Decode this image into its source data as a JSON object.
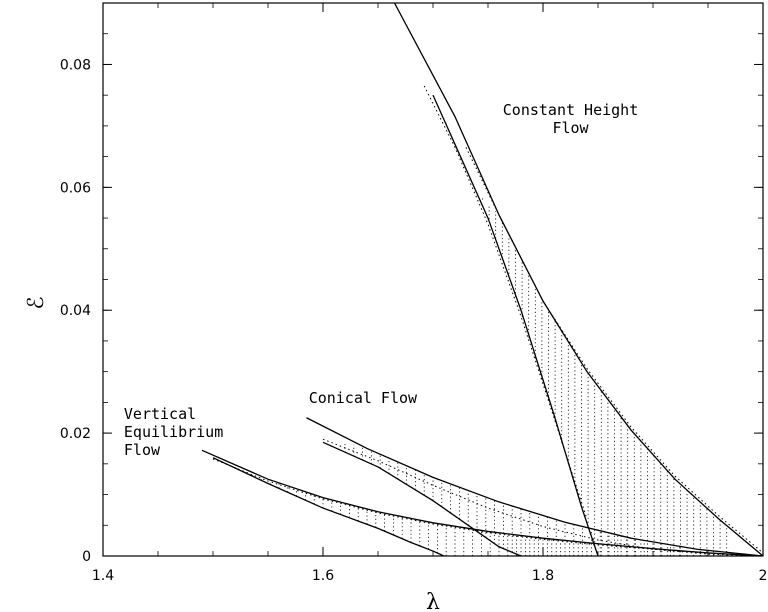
{
  "chart_data": {
    "type": "line",
    "title": "",
    "xlabel": "λ",
    "ylabel": "ℰ",
    "xlim": [
      1.4,
      2.0
    ],
    "ylim": [
      0,
      0.09
    ],
    "x_ticks": [
      {
        "value": 1.4,
        "label": "1.4"
      },
      {
        "value": 1.6,
        "label": "1.6"
      },
      {
        "value": 1.8,
        "label": "1.8"
      },
      {
        "value": 2.0,
        "label": "2"
      }
    ],
    "y_ticks": [
      {
        "value": 0,
        "label": "0"
      },
      {
        "value": 0.02,
        "label": "0.02"
      },
      {
        "value": 0.04,
        "label": "0.04"
      },
      {
        "value": 0.06,
        "label": "0.06"
      },
      {
        "value": 0.08,
        "label": "0.08"
      }
    ],
    "grid": false,
    "annotations": [
      {
        "lines": [
          "Constant Height",
          "Flow"
        ],
        "x": 1.825,
        "y": 0.0718,
        "align": "middle"
      },
      {
        "lines": [
          "Conical Flow"
        ],
        "x": 1.587,
        "y": 0.0249,
        "align": "start"
      },
      {
        "lines": [
          "Vertical",
          "Equilibrium",
          "Flow"
        ],
        "x": 1.419,
        "y": 0.0223,
        "align": "start"
      }
    ],
    "series": [
      {
        "style": "solid",
        "x": [
          1.665,
          1.72,
          1.76,
          1.8,
          1.84,
          1.88,
          1.92,
          1.96,
          2.0
        ],
        "y": [
          0.09,
          0.0715,
          0.0555,
          0.0415,
          0.03,
          0.0205,
          0.0125,
          0.006,
          0.0
        ]
      },
      {
        "style": "solid",
        "x": [
          1.7,
          1.72,
          1.75,
          1.78,
          1.81,
          1.835,
          1.85
        ],
        "y": [
          0.075,
          0.067,
          0.055,
          0.04,
          0.023,
          0.008,
          0.0
        ]
      },
      {
        "style": "dotted",
        "x": [
          1.692,
          1.72,
          1.75,
          1.78,
          1.81,
          1.84
        ],
        "y": [
          0.0765,
          0.0665,
          0.054,
          0.039,
          0.0225,
          0.006
        ]
      },
      {
        "style": "dotted",
        "x": [
          1.73,
          1.76,
          1.8,
          1.84,
          1.88,
          1.92,
          1.96,
          2.0
        ],
        "y": [
          0.0665,
          0.0555,
          0.0415,
          0.0305,
          0.021,
          0.013,
          0.0065,
          0.0005
        ]
      },
      {
        "style": "solid",
        "x": [
          1.585,
          1.64,
          1.7,
          1.76,
          1.82,
          1.88,
          1.94,
          2.0
        ],
        "y": [
          0.0225,
          0.0175,
          0.0128,
          0.0088,
          0.0055,
          0.0029,
          0.0011,
          0.0
        ]
      },
      {
        "style": "solid",
        "x": [
          1.6,
          1.65,
          1.7,
          1.74,
          1.76,
          1.78
        ],
        "y": [
          0.0185,
          0.0145,
          0.009,
          0.004,
          0.0015,
          0.0
        ]
      },
      {
        "style": "dotted",
        "x": [
          1.6,
          1.65,
          1.7,
          1.75,
          1.8,
          1.85,
          1.9,
          1.95,
          2.0
        ],
        "y": [
          0.019,
          0.0155,
          0.0115,
          0.0078,
          0.0048,
          0.0026,
          0.0011,
          0.0003,
          0.0
        ]
      },
      {
        "style": "solid",
        "x": [
          1.49,
          1.55,
          1.6,
          1.65,
          1.7,
          1.75,
          1.8,
          1.85,
          1.9,
          1.95,
          2.0
        ],
        "y": [
          0.0172,
          0.0125,
          0.0095,
          0.0072,
          0.0054,
          0.004,
          0.0029,
          0.002,
          0.0012,
          0.0005,
          0.0
        ]
      },
      {
        "style": "solid",
        "x": [
          1.5,
          1.55,
          1.6,
          1.65,
          1.68,
          1.7,
          1.71
        ],
        "y": [
          0.016,
          0.0118,
          0.0078,
          0.0045,
          0.0022,
          0.0008,
          0.0
        ]
      },
      {
        "style": "dotted",
        "x": [
          1.5,
          1.55,
          1.6,
          1.65,
          1.7,
          1.75,
          1.8,
          1.85,
          1.9,
          1.95,
          2.0
        ],
        "y": [
          0.0158,
          0.0122,
          0.0093,
          0.007,
          0.0052,
          0.0038,
          0.0027,
          0.0018,
          0.0011,
          0.0005,
          0.0
        ]
      }
    ],
    "hatched_regions": [
      {
        "x_range": [
          1.745,
          1.97
        ],
        "step": 0.006,
        "lower": [
          [
            1.745,
            0.058
          ],
          [
            1.78,
            0.0395
          ],
          [
            1.81,
            0.0225
          ],
          [
            1.835,
            0.008
          ],
          [
            1.85,
            0.0
          ],
          [
            1.97,
            0.0
          ]
        ],
        "upper": [
          [
            1.745,
            0.0585
          ],
          [
            1.76,
            0.0555
          ],
          [
            1.8,
            0.0415
          ],
          [
            1.84,
            0.03
          ],
          [
            1.88,
            0.0205
          ],
          [
            1.92,
            0.0125
          ],
          [
            1.96,
            0.006
          ],
          [
            1.97,
            0.0045
          ]
        ]
      },
      {
        "x_range": [
          1.62,
          1.93
        ],
        "step": 0.008,
        "lower": [
          [
            1.62,
            0.0168
          ],
          [
            1.65,
            0.0145
          ],
          [
            1.7,
            0.009
          ],
          [
            1.74,
            0.004
          ],
          [
            1.76,
            0.0015
          ],
          [
            1.78,
            0.0
          ],
          [
            1.93,
            0.0
          ]
        ],
        "upper": [
          [
            1.62,
            0.0185
          ],
          [
            1.64,
            0.0175
          ],
          [
            1.7,
            0.0128
          ],
          [
            1.76,
            0.0088
          ],
          [
            1.82,
            0.0055
          ],
          [
            1.88,
            0.0029
          ],
          [
            1.93,
            0.0014
          ]
        ]
      },
      {
        "x_range": [
          1.52,
          1.84
        ],
        "step": 0.008,
        "lower": [
          [
            1.52,
            0.0143
          ],
          [
            1.55,
            0.0118
          ],
          [
            1.6,
            0.0078
          ],
          [
            1.65,
            0.0045
          ],
          [
            1.68,
            0.0022
          ],
          [
            1.7,
            0.0008
          ],
          [
            1.71,
            0.0
          ],
          [
            1.84,
            0.0
          ]
        ],
        "upper": [
          [
            1.52,
            0.0148
          ],
          [
            1.55,
            0.0125
          ],
          [
            1.6,
            0.0095
          ],
          [
            1.65,
            0.0072
          ],
          [
            1.7,
            0.0054
          ],
          [
            1.75,
            0.004
          ],
          [
            1.8,
            0.0029
          ],
          [
            1.84,
            0.0022
          ]
        ]
      }
    ]
  }
}
